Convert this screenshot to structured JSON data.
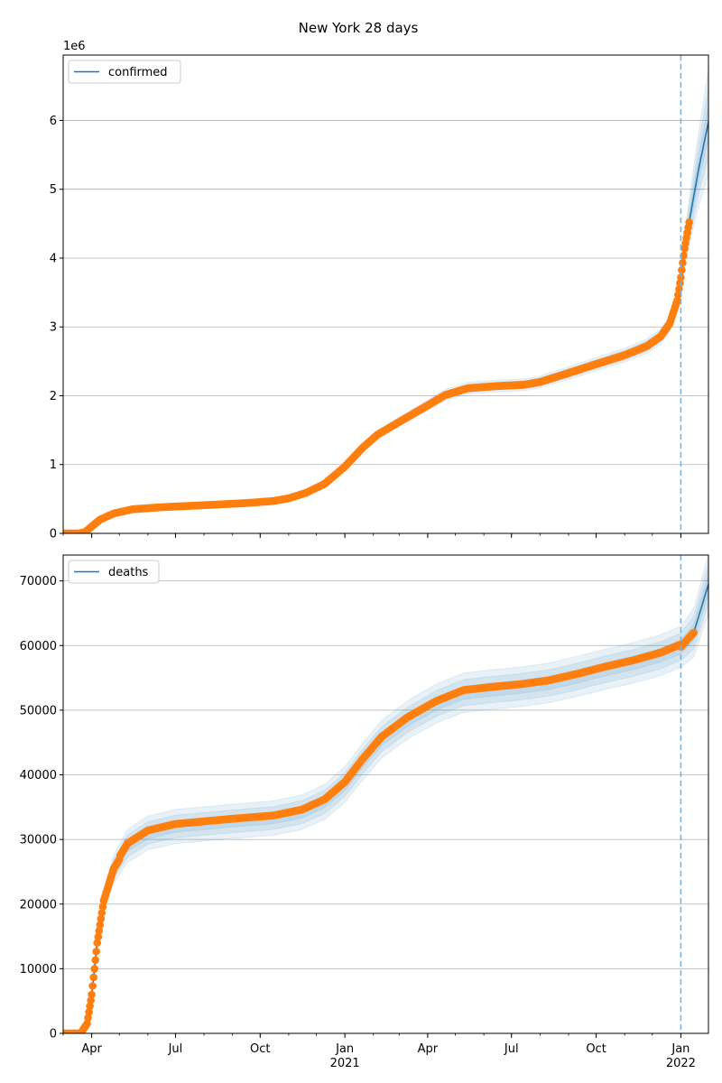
{
  "figure": {
    "title": "New York 28 days"
  },
  "chart_data": [
    {
      "type": "line",
      "series_name": "confirmed",
      "title": "New York 28 days",
      "xlabel": "",
      "ylabel": "",
      "y_offset_label": "1e6",
      "xlim": [
        "2020-03-01",
        "2022-01-31"
      ],
      "ylim": [
        0,
        6950000
      ],
      "yticks": [
        0,
        1000000,
        2000000,
        3000000,
        4000000,
        5000000,
        6000000
      ],
      "ytick_labels": [
        "0",
        "1",
        "2",
        "3",
        "4",
        "5",
        "6"
      ],
      "grid": "horizontal",
      "legend_position": "top-left",
      "forecast_start": "2022-01-01",
      "observed_end": "2022-01-10",
      "observed_color": "#ff7f0e",
      "model_color": "#1f77b4",
      "band_color": "#1f77b4",
      "dashed_line_color": "#7fb0d8",
      "anchors": [
        [
          "2020-03-01",
          0
        ],
        [
          "2020-03-18",
          0
        ],
        [
          "2020-03-25",
          20000
        ],
        [
          "2020-04-01",
          100000
        ],
        [
          "2020-04-10",
          200000
        ],
        [
          "2020-04-25",
          290000
        ],
        [
          "2020-05-15",
          350000
        ],
        [
          "2020-06-15",
          380000
        ],
        [
          "2020-08-01",
          410000
        ],
        [
          "2020-09-15",
          440000
        ],
        [
          "2020-10-15",
          470000
        ],
        [
          "2020-11-01",
          510000
        ],
        [
          "2020-11-20",
          590000
        ],
        [
          "2020-12-10",
          720000
        ],
        [
          "2021-01-01",
          970000
        ],
        [
          "2021-01-20",
          1240000
        ],
        [
          "2021-02-05",
          1430000
        ],
        [
          "2021-03-01",
          1620000
        ],
        [
          "2021-04-01",
          1860000
        ],
        [
          "2021-04-20",
          2010000
        ],
        [
          "2021-05-15",
          2110000
        ],
        [
          "2021-06-15",
          2140000
        ],
        [
          "2021-07-15",
          2160000
        ],
        [
          "2021-08-01",
          2200000
        ],
        [
          "2021-09-01",
          2330000
        ],
        [
          "2021-10-01",
          2460000
        ],
        [
          "2021-11-01",
          2590000
        ],
        [
          "2021-11-25",
          2720000
        ],
        [
          "2021-12-10",
          2860000
        ],
        [
          "2021-12-20",
          3050000
        ],
        [
          "2021-12-28",
          3380000
        ],
        [
          "2022-01-01",
          3720000
        ],
        [
          "2022-01-05",
          4140000
        ],
        [
          "2022-01-10",
          4520000
        ],
        [
          "2022-01-20",
          5270000
        ],
        [
          "2022-01-31",
          5980000
        ]
      ]
    },
    {
      "type": "line",
      "series_name": "deaths",
      "xlabel": "",
      "ylabel": "",
      "xlim": [
        "2020-03-01",
        "2022-01-31"
      ],
      "ylim": [
        0,
        74000
      ],
      "yticks": [
        0,
        10000,
        20000,
        30000,
        40000,
        50000,
        60000,
        70000
      ],
      "ytick_labels": [
        "0",
        "10000",
        "20000",
        "30000",
        "40000",
        "50000",
        "60000",
        "70000"
      ],
      "xticks": [
        {
          "date": "2020-04-01",
          "label": "Apr",
          "sub": ""
        },
        {
          "date": "2020-07-01",
          "label": "Jul",
          "sub": ""
        },
        {
          "date": "2020-10-01",
          "label": "Oct",
          "sub": ""
        },
        {
          "date": "2021-01-01",
          "label": "Jan",
          "sub": "2021"
        },
        {
          "date": "2021-04-01",
          "label": "Apr",
          "sub": ""
        },
        {
          "date": "2021-07-01",
          "label": "Jul",
          "sub": ""
        },
        {
          "date": "2021-10-01",
          "label": "Oct",
          "sub": ""
        },
        {
          "date": "2022-01-01",
          "label": "Jan",
          "sub": "2022"
        }
      ],
      "grid": "horizontal",
      "legend_position": "top-left",
      "forecast_start": "2022-01-01",
      "observed_end": "2022-01-15",
      "observed_color": "#ff7f0e",
      "model_color": "#1f77b4",
      "band_color": "#1f77b4",
      "dashed_line_color": "#7fb0d8",
      "anchors": [
        [
          "2020-03-01",
          0
        ],
        [
          "2020-03-20",
          0
        ],
        [
          "2020-03-27",
          1500
        ],
        [
          "2020-04-01",
          6000
        ],
        [
          "2020-04-07",
          14000
        ],
        [
          "2020-04-14",
          20500
        ],
        [
          "2020-04-25",
          25500
        ],
        [
          "2020-05-10",
          29000
        ],
        [
          "2020-06-01",
          31000
        ],
        [
          "2020-07-01",
          32000
        ],
        [
          "2020-09-01",
          32800
        ],
        [
          "2020-10-15",
          33300
        ],
        [
          "2020-11-15",
          34200
        ],
        [
          "2020-12-10",
          35800
        ],
        [
          "2021-01-01",
          38500
        ],
        [
          "2021-01-20",
          42000
        ],
        [
          "2021-02-10",
          45500
        ],
        [
          "2021-03-10",
          48500
        ],
        [
          "2021-04-10",
          51000
        ],
        [
          "2021-05-10",
          52700
        ],
        [
          "2021-06-10",
          53200
        ],
        [
          "2021-07-10",
          53600
        ],
        [
          "2021-08-10",
          54200
        ],
        [
          "2021-09-10",
          55200
        ],
        [
          "2021-10-10",
          56300
        ],
        [
          "2021-11-10",
          57300
        ],
        [
          "2021-12-10",
          58500
        ],
        [
          "2022-01-01",
          59800
        ],
        [
          "2022-01-15",
          62000
        ],
        [
          "2022-01-31",
          69500
        ]
      ]
    }
  ]
}
